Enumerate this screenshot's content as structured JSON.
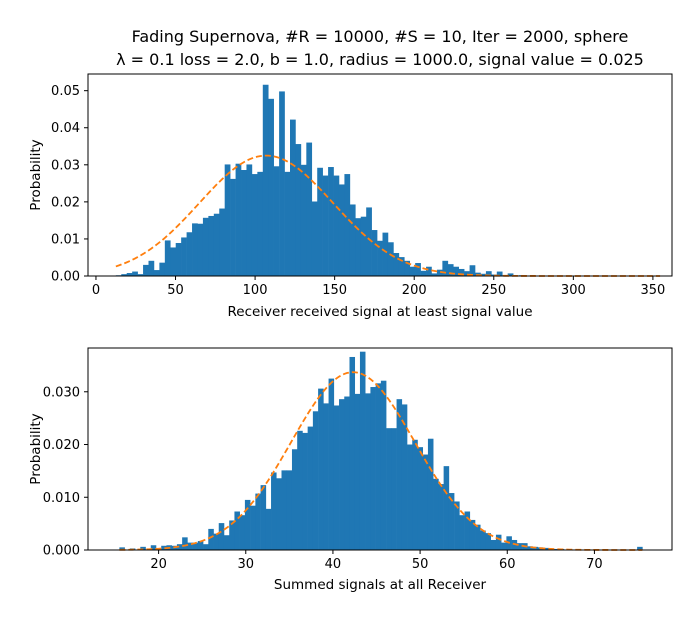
{
  "chart_data": [
    {
      "type": "bar",
      "title": "Fading Supernova, #R = 10000, #S = 10, Iter = 2000, sphere",
      "subtitle": "λ = 0.1 loss = 2.0, b = 1.0, radius = 1000.0, signal value = 0.025",
      "xlabel": "Receiver received signal at least signal value",
      "ylabel": "Probability",
      "xlim": [
        -5,
        362
      ],
      "ylim": [
        0,
        0.0545
      ],
      "xticks": [
        0,
        50,
        100,
        150,
        200,
        250,
        300,
        350
      ],
      "yticks": [
        0.0,
        0.01,
        0.02,
        0.03,
        0.04,
        0.05
      ],
      "ytick_labels": [
        "0.00",
        "0.01",
        "0.02",
        "0.03",
        "0.04",
        "0.05"
      ],
      "bin_start": 12.5,
      "bin_width": 3.42,
      "values": [
        0.0002,
        0.0005,
        0.0008,
        0.0012,
        0.0005,
        0.003,
        0.0041,
        0.0016,
        0.0036,
        0.0096,
        0.0077,
        0.0089,
        0.0104,
        0.0118,
        0.0142,
        0.0141,
        0.0157,
        0.0162,
        0.0168,
        0.0182,
        0.0301,
        0.0262,
        0.0303,
        0.0286,
        0.0301,
        0.0275,
        0.0281,
        0.0516,
        0.0478,
        0.0296,
        0.0498,
        0.0281,
        0.0422,
        0.0356,
        0.03,
        0.036,
        0.0201,
        0.0292,
        0.0271,
        0.0294,
        0.0271,
        0.0247,
        0.0275,
        0.0193,
        0.0156,
        0.016,
        0.0185,
        0.0124,
        0.0095,
        0.0117,
        0.0091,
        0.0062,
        0.0051,
        0.0041,
        0.0025,
        0.0035,
        0.0014,
        0.0025,
        0.0007,
        0.0017,
        0.0041,
        0.0032,
        0.0025,
        0.0019,
        0.0013,
        0.0029,
        0.0009,
        0.0006,
        0.0013,
        0.0004,
        0.0012,
        0.0002,
        0.0007,
        0.0001,
        0.0002,
        0.0001,
        0,
        0.0001,
        0,
        0.0001,
        0,
        0,
        0.0001,
        0,
        0,
        0,
        0,
        0,
        0,
        0,
        0,
        0,
        0,
        0,
        0,
        0,
        0,
        0,
        0,
        0.0001
      ],
      "fit": {
        "type": "normal",
        "mean": 107,
        "sd": 42,
        "color": "#ff7f0e"
      },
      "bar_color": "#1f77b4"
    },
    {
      "type": "bar",
      "title": "",
      "xlabel": "Summed signals at all Receiver",
      "ylabel": "Probability",
      "xlim": [
        11.9,
        78.9
      ],
      "ylim": [
        0,
        0.0383
      ],
      "xticks": [
        20,
        30,
        40,
        50,
        60,
        70
      ],
      "yticks": [
        0.0,
        0.01,
        0.02,
        0.03
      ],
      "ytick_labels": [
        "0.000",
        "0.010",
        "0.020",
        "0.030"
      ],
      "bin_start": 15.5,
      "bin_width": 0.6,
      "values": [
        0.0005,
        0,
        0.0003,
        0,
        0.0006,
        0,
        0.0009,
        0,
        0.0008,
        0.0009,
        0.0008,
        0.0011,
        0.0024,
        0.0014,
        0.0014,
        0.0017,
        0.0011,
        0.004,
        0.0031,
        0.0051,
        0.0028,
        0.0056,
        0.0073,
        0.0066,
        0.0095,
        0.0084,
        0.0107,
        0.0123,
        0.0078,
        0.0147,
        0.0136,
        0.0151,
        0.0151,
        0.0191,
        0.0226,
        0.0222,
        0.0234,
        0.0263,
        0.0306,
        0.0278,
        0.0325,
        0.0274,
        0.0286,
        0.0291,
        0.0366,
        0.0296,
        0.0376,
        0.0297,
        0.0309,
        0.0316,
        0.0321,
        0.0231,
        0.0231,
        0.0286,
        0.0276,
        0.02,
        0.0209,
        0.0195,
        0.0181,
        0.0211,
        0.0135,
        0.0125,
        0.0159,
        0.0108,
        0.0092,
        0.0066,
        0.0073,
        0.0057,
        0.0048,
        0.0037,
        0.0032,
        0.0019,
        0.0029,
        0.0014,
        0.0026,
        0.0019,
        0.0013,
        0.0013,
        0.0007,
        0.0006,
        0.0005,
        0.0004,
        0,
        0.0002,
        0.0002,
        0,
        0.0001,
        0.0001,
        0,
        0,
        0,
        0,
        0,
        0,
        0,
        0,
        0,
        0,
        0,
        0.0006
      ],
      "fit": {
        "type": "normal",
        "mean": 42.3,
        "sd": 7.1,
        "color": "#ff7f0e"
      },
      "bar_color": "#1f77b4"
    }
  ]
}
